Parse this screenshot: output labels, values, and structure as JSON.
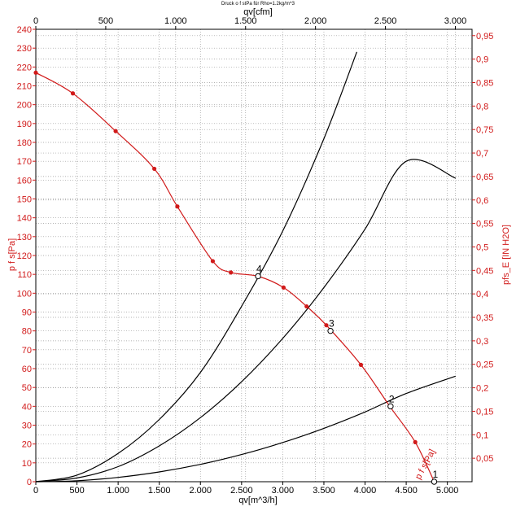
{
  "chart_data": {
    "type": "line",
    "title": "Druck o f stPa für Rho=1.2kg/m^3",
    "xlabel": "qv[m^3/h]",
    "x2label": "qv[cfm]",
    "ylabel": "p f s[Pa]",
    "y2label": "pfs_E [IN H2O]",
    "xlim": [
      0,
      5300
    ],
    "ylim": [
      0,
      240
    ],
    "x2lim": [
      0,
      3119.5
    ],
    "y2lim": [
      0,
      0.9635
    ],
    "grid": true,
    "x_ticks": [
      0,
      500,
      1000,
      1500,
      2000,
      2500,
      3000,
      3500,
      4000,
      4500,
      5000
    ],
    "x_tick_labels": [
      "0",
      "500",
      "1.000",
      "1.500",
      "2.000",
      "2.500",
      "3.000",
      "3.500",
      "4.000",
      "4.500",
      "5.000"
    ],
    "x2_ticks": [
      0,
      500,
      1000,
      1500,
      2000,
      2500,
      3000
    ],
    "x2_tick_labels": [
      "0",
      "500",
      "1.000",
      "1.500",
      "2.000",
      "2.500",
      "3.000"
    ],
    "y_ticks": [
      0,
      10,
      20,
      30,
      40,
      50,
      60,
      70,
      80,
      90,
      100,
      110,
      120,
      130,
      140,
      150,
      160,
      170,
      180,
      190,
      200,
      210,
      220,
      230,
      240
    ],
    "y_tick_labels": [
      "0",
      "10",
      "20",
      "30",
      "40",
      "50",
      "60",
      "70",
      "80",
      "90",
      "100",
      "110",
      "120",
      "130",
      "140",
      "150",
      "160",
      "170",
      "180",
      "190",
      "200",
      "210",
      "220",
      "230",
      "240"
    ],
    "y2_ticks": [
      0.05,
      0.1,
      0.15,
      0.2,
      0.25,
      0.3,
      0.35,
      0.4,
      0.45,
      0.5,
      0.55,
      0.6,
      0.65,
      0.7,
      0.75,
      0.8,
      0.85,
      0.9,
      0.95
    ],
    "y2_tick_labels": [
      "0,05",
      "0,1",
      "0,15",
      "0,2",
      "0,25",
      "0,3",
      "0,35",
      "0,4",
      "0,45",
      "0,5",
      "0,55",
      "0,6",
      "0,65",
      "0,7",
      "0,75",
      "0,8",
      "0,85",
      "0,9",
      "0,95"
    ],
    "fan_curve": {
      "name": "p f s[Pa]",
      "color": "#d11a1a",
      "x": [
        0,
        450,
        970,
        1440,
        1720,
        2150,
        2370,
        2700,
        3010,
        3290,
        3530,
        3950,
        4300,
        4610,
        4840
      ],
      "y": [
        217,
        206,
        186,
        166,
        146,
        117,
        111,
        109,
        103,
        93,
        83,
        62,
        40,
        21,
        0
      ]
    },
    "system_curves": [
      {
        "color": "#000000",
        "x": [
          0,
          500,
          1000,
          1500,
          2000,
          2500,
          3000,
          3500,
          3900
        ],
        "y": [
          0,
          3.5,
          15,
          33,
          58,
          93,
          133,
          182,
          228
        ]
      },
      {
        "color": "#000000",
        "x": [
          0,
          500,
          1000,
          1500,
          2000,
          2500,
          3000,
          3500,
          4000,
          4500,
          5100
        ],
        "y": [
          0,
          2,
          8,
          19,
          34,
          53,
          76,
          103,
          134,
          170,
          161
        ]
      },
      {
        "color": "#000000",
        "x": [
          0,
          500,
          1000,
          1500,
          2000,
          2500,
          3000,
          3500,
          4000,
          4500,
          5100
        ],
        "y": [
          0,
          0.5,
          2.3,
          5.2,
          9.2,
          14.4,
          20.8,
          28.3,
          37,
          46.8,
          56
        ]
      }
    ],
    "operating_points": [
      {
        "label": "4",
        "x": 2700,
        "y": 109
      },
      {
        "label": "3",
        "x": 3580,
        "y": 80
      },
      {
        "label": "2",
        "x": 4310,
        "y": 40
      },
      {
        "label": "1",
        "x": 4840,
        "y": 0
      }
    ]
  }
}
